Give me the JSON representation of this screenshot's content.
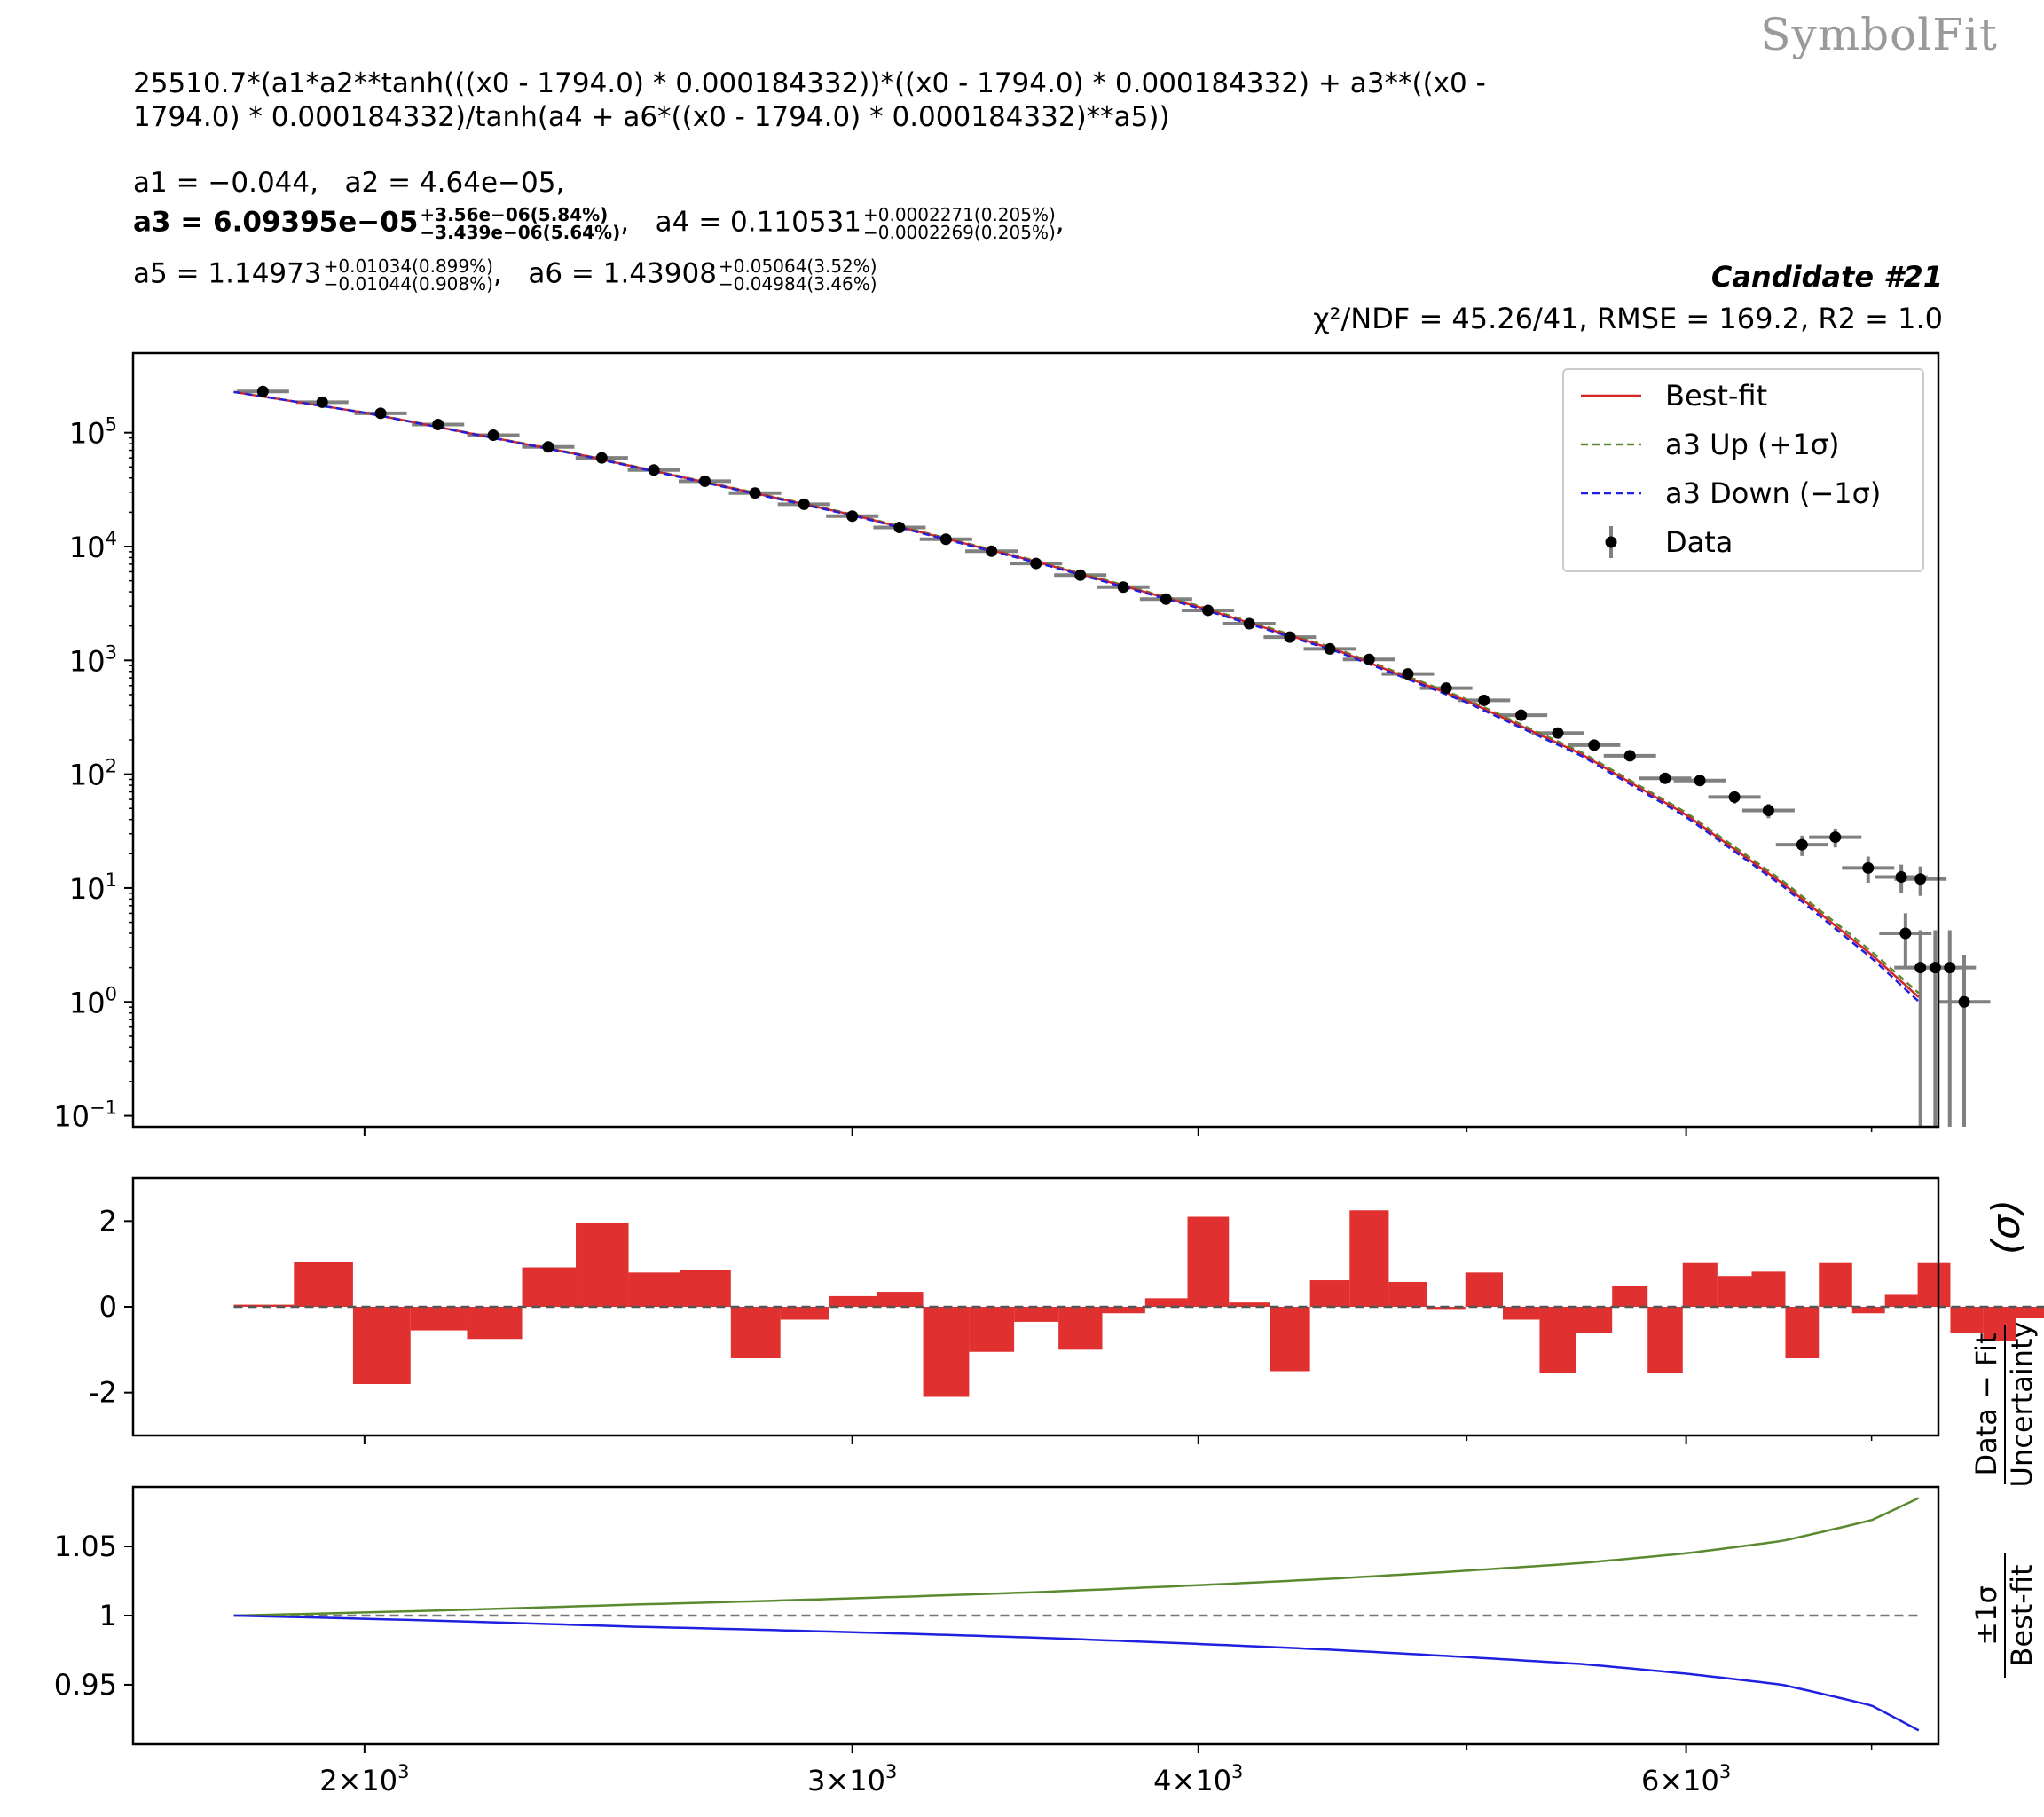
{
  "watermark": "SymbolFit",
  "formula_line1": "25510.7*(a1*a2**tanh(((x0 - 1794.0) * 0.000184332))*((x0 - 1794.0) * 0.000184332) + a3**((x0 -",
  "formula_line2": "1794.0) * 0.000184332)/tanh(a4 + a6*((x0 - 1794.0) * 0.000184332)**a5))",
  "params": {
    "a1": "a1 = −0.044,",
    "a2": "a2 = 4.64e−05,",
    "a3": {
      "label": "a3 = 6.09395e−05",
      "up": "+3.56e−06(5.84%)",
      "down": "−3.439e−06(5.64%)"
    },
    "a4": {
      "label": "a4 = 0.110531",
      "up": "+0.0002271(0.205%)",
      "down": "−0.0002269(0.205%)"
    },
    "a5": {
      "label": "a5 = 1.14973",
      "up": "+0.01034(0.899%)",
      "down": "−0.01044(0.908%)"
    },
    "a6": {
      "label": "a6 = 1.43908",
      "up": "+0.05064(3.52%)",
      "down": "−0.04984(3.46%)"
    }
  },
  "candidate": "Candidate #21",
  "stats": "χ²/NDF = 45.26/41, RMSE = 169.2, R2 = 1.0",
  "colors": {
    "best": "#d62728",
    "up": "#5a8a30",
    "down": "#2020e0",
    "data": "#000000",
    "err": "#808080",
    "resid": "#e03030"
  },
  "chart_data": [
    {
      "type": "line",
      "panel": "main",
      "xscale": "log",
      "yscale": "log",
      "xlim": [
        1650,
        7400
      ],
      "ylim": [
        0.08,
        500000
      ],
      "yticks": [
        0.1,
        1,
        10,
        100,
        1000,
        10000,
        100000
      ],
      "ytick_labels": [
        [
          "10",
          "−1"
        ],
        [
          "10",
          "0"
        ],
        [
          "10",
          "1"
        ],
        [
          "10",
          "2"
        ],
        [
          "10",
          "3"
        ],
        [
          "10",
          "4"
        ],
        [
          "10",
          "5"
        ]
      ],
      "legend": {
        "position": "top-right",
        "entries": [
          "Best-fit",
          "a3 Up (+1σ)",
          "a3 Down (−1σ)",
          "Data"
        ]
      },
      "bins": [
        1794,
        1886,
        1981,
        2078,
        2178,
        2280,
        2384,
        2491,
        2600,
        2712,
        2826,
        2942,
        3061,
        3182,
        3306,
        3432,
        3561,
        3693,
        3827,
        3964,
        4103,
        4245,
        4389,
        4536,
        4686,
        4838,
        4994,
        5152,
        5312,
        5476,
        5642,
        5811,
        5983,
        6158,
        6336,
        6516,
        6700,
        6888,
        7078
      ],
      "centers": [
        1838,
        1931,
        2027,
        2126,
        2226,
        2330,
        2436,
        2544,
        2654,
        2767,
        2882,
        3000,
        3120,
        3243,
        3368,
        3495,
        3626,
        3758,
        3894,
        4032,
        4173,
        4316,
        4462,
        4610,
        4761,
        4915,
        5072,
        5231,
        5393,
        5558,
        5726,
        5896,
        6069,
        6246,
        6425,
        6607,
        6792,
        6980,
        7175
      ],
      "data": [
        230000,
        185000,
        148000,
        118000,
        95000,
        75000,
        60000,
        47000,
        37500,
        29500,
        23500,
        18500,
        14700,
        11600,
        9100,
        7100,
        5600,
        4400,
        3450,
        2750,
        2100,
        1600,
        1260,
        1020,
        760,
        570,
        445,
        330,
        230,
        180,
        145,
        92,
        88,
        63,
        48,
        24,
        28,
        15,
        12.5,
        12,
        4,
        2,
        2,
        2,
        1
      ],
      "data_x": [
        1838,
        1931,
        2027,
        2126,
        2226,
        2330,
        2436,
        2544,
        2654,
        2767,
        2882,
        3000,
        3120,
        3243,
        3368,
        3495,
        3626,
        3758,
        3894,
        4032,
        4173,
        4316,
        4462,
        4610,
        4761,
        4915,
        5072,
        5231,
        5393,
        5558,
        5726,
        5896,
        6069,
        6246,
        6425,
        6607,
        6792,
        6980,
        7175,
        7290,
        7200,
        7290,
        7380,
        7470,
        7560
      ],
      "best_fit_points": [
        [
          1790,
          230000
        ],
        [
          2000,
          150000
        ],
        [
          2400,
          63000
        ],
        [
          3000,
          19000
        ],
        [
          3500,
          7300
        ],
        [
          4000,
          2950
        ],
        [
          4500,
          1200
        ],
        [
          5000,
          440
        ],
        [
          5500,
          150
        ],
        [
          6000,
          44
        ],
        [
          6500,
          11
        ],
        [
          7000,
          2.6
        ],
        [
          7280,
          1.1
        ]
      ]
    },
    {
      "type": "bar",
      "panel": "residual",
      "ylabel": "Data − Fit / Uncertainty (σ)",
      "ylim": [
        -3,
        3
      ],
      "yticks": [
        2,
        0,
        -2
      ],
      "ytick_labels": [
        "2",
        "0",
        "-2"
      ],
      "values": [
        0.05,
        1.05,
        -1.8,
        -0.55,
        -0.75,
        0.92,
        1.95,
        0.8,
        0.85,
        -1.2,
        -0.3,
        0.25,
        0.35,
        -2.1,
        -1.05,
        -0.35,
        -1.0,
        -0.15,
        0.2,
        2.1,
        0.1,
        -1.5,
        0.62,
        2.25,
        0.58,
        -0.05,
        0.8,
        -0.3,
        -1.55,
        -0.6,
        0.48,
        -1.55,
        1.02,
        0.72,
        0.82,
        -1.2,
        1.02,
        -0.15,
        0.28,
        1.02,
        -0.6,
        -0.8,
        -0.25,
        0.15,
        -0.05
      ]
    },
    {
      "type": "line",
      "panel": "ratio",
      "ylabel": "±1σ / Best-fit",
      "ylim": [
        0.907,
        1.093
      ],
      "yticks": [
        1.05,
        1,
        0.95
      ],
      "ytick_labels": [
        "1.05",
        "1",
        "0.95"
      ],
      "xticks": [
        2000,
        3000,
        4000,
        6000
      ],
      "xtick_labels": [
        [
          "2×10",
          "3"
        ],
        [
          "3×10",
          "3"
        ],
        [
          "4×10",
          "3"
        ],
        [
          "6×10",
          "3"
        ]
      ],
      "series": [
        {
          "name": "a3 Up (+1σ)",
          "x": [
            1794,
            2500,
            3500,
            4500,
            5500,
            6000,
            6500,
            7000,
            7280
          ],
          "y": [
            1.0,
            1.008,
            1.017,
            1.027,
            1.038,
            1.045,
            1.054,
            1.069,
            1.085
          ]
        },
        {
          "name": "a3 Down (−1σ)",
          "x": [
            1794,
            2500,
            3500,
            4500,
            5500,
            6000,
            6500,
            7000,
            7280
          ],
          "y": [
            1.0,
            0.992,
            0.984,
            0.975,
            0.965,
            0.958,
            0.95,
            0.935,
            0.917
          ]
        }
      ]
    }
  ]
}
